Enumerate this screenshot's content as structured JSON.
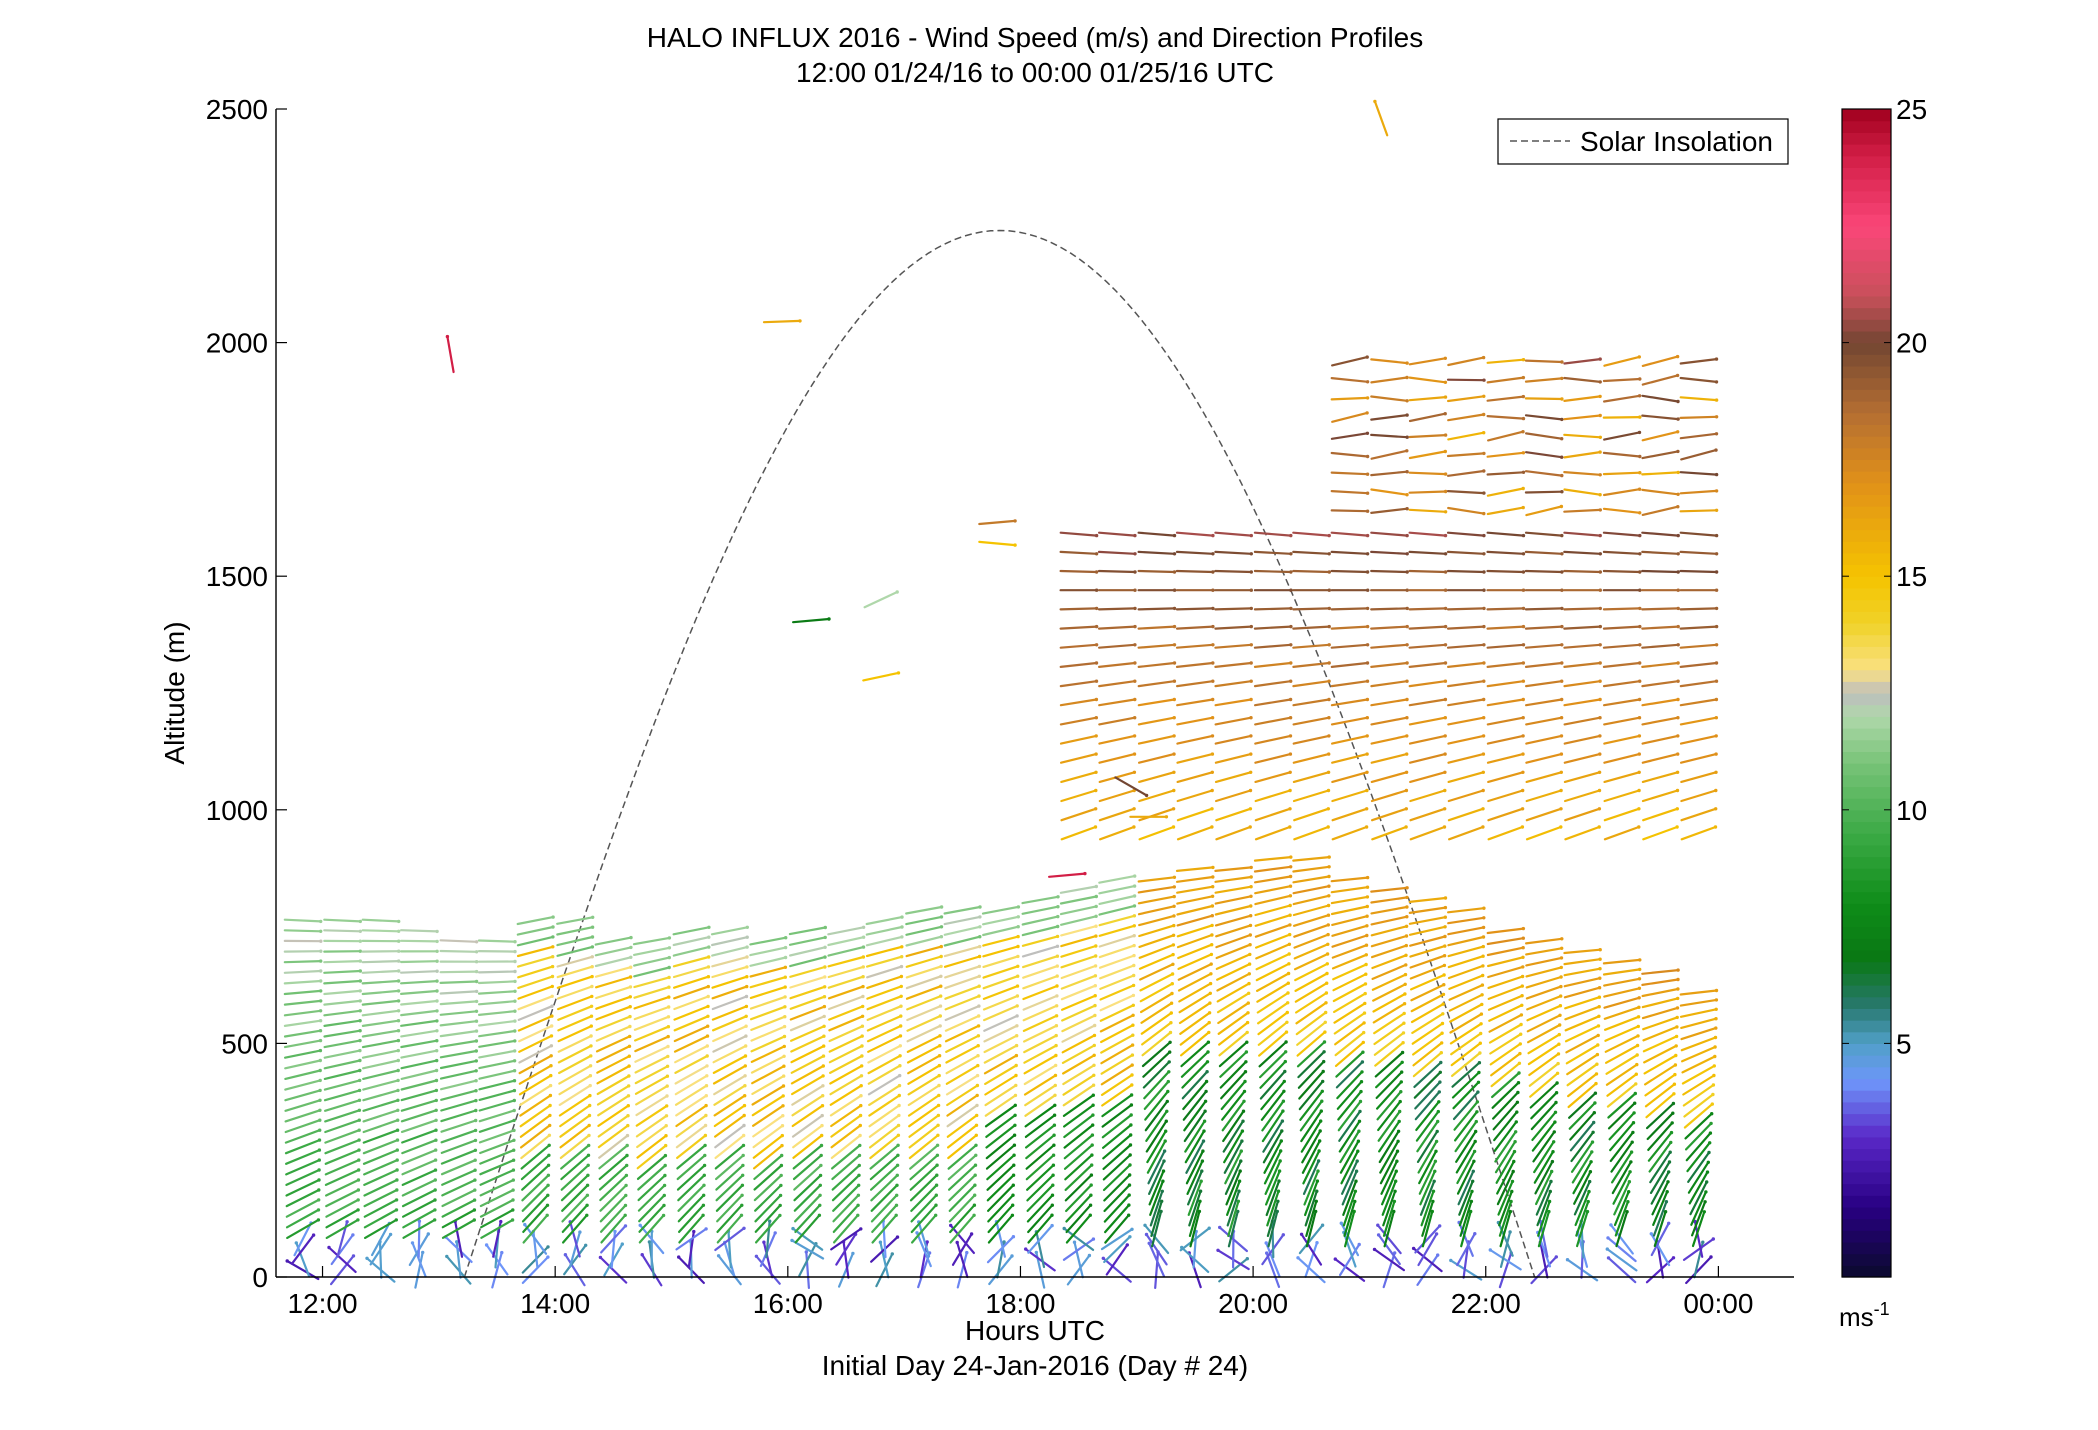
{
  "chart_data": {
    "type": "quiver",
    "title": "HALO INFLUX 2016 - Wind Speed (m/s) and Direction Profiles",
    "subtitle": "12:00 01/24/16 to 00:00 01/25/16  UTC",
    "xlabel": "Hours UTC",
    "xlabel2": "Initial Day 24-Jan-2016 (Day # 24)",
    "ylabel": "Altitude (m)",
    "xlim": [
      11.6,
      24.65
    ],
    "ylim": [
      0,
      2500
    ],
    "xticks": [
      {
        "value": 12,
        "label": "12:00"
      },
      {
        "value": 14,
        "label": "14:00"
      },
      {
        "value": 16,
        "label": "16:00"
      },
      {
        "value": 18,
        "label": "18:00"
      },
      {
        "value": 20,
        "label": "20:00"
      },
      {
        "value": 22,
        "label": "22:00"
      },
      {
        "value": 24,
        "label": "00:00"
      }
    ],
    "yticks": [
      {
        "value": 0,
        "label": "0"
      },
      {
        "value": 500,
        "label": "500"
      },
      {
        "value": 1000,
        "label": "1000"
      },
      {
        "value": 1500,
        "label": "1500"
      },
      {
        "value": 2000,
        "label": "2000"
      },
      {
        "value": 2500,
        "label": "2500"
      }
    ],
    "colorbar": {
      "range": [
        0,
        25
      ],
      "ticks": [
        {
          "value": 5,
          "label": "5"
        },
        {
          "value": 10,
          "label": "10"
        },
        {
          "value": 15,
          "label": "15"
        },
        {
          "value": 20,
          "label": "20"
        },
        {
          "value": 25,
          "label": "25"
        }
      ],
      "unit_label": "ms",
      "unit_exponent": "-1"
    },
    "legend": {
      "position": "top-right",
      "entries": [
        {
          "name": "Solar Insolation",
          "style": "dashed",
          "color": "#555555"
        }
      ]
    },
    "solar_insolation": {
      "start_hour": 13.22,
      "peak_hour": 17.82,
      "end_hour": 22.42,
      "peak_altitude": 2240
    },
    "profile_times": [
      11.83,
      12.17,
      12.5,
      12.83,
      13.17,
      13.5,
      13.83,
      14.17,
      14.5,
      14.83,
      15.17,
      15.5,
      15.83,
      16.17,
      16.5,
      16.83,
      17.17,
      17.5,
      17.83,
      18.17,
      18.5,
      18.83,
      19.17,
      19.5,
      19.83,
      20.17,
      20.5,
      20.83,
      21.17,
      21.5,
      21.83,
      22.17,
      22.5,
      22.83,
      23.17,
      23.5,
      23.83
    ],
    "boundary_layer_top": [
      770,
      770,
      770,
      760,
      730,
      740,
      780,
      770,
      740,
      720,
      760,
      760,
      730,
      750,
      760,
      780,
      790,
      790,
      800,
      810,
      830,
      860,
      870,
      880,
      880,
      900,
      900,
      860,
      840,
      820,
      800,
      760,
      740,
      700,
      680,
      660,
      620
    ],
    "upper_layer": {
      "start_hour": 18.33,
      "base_altitude": 950,
      "top_altitude": 1600
    },
    "extra_upper_rows": {
      "start_hour": 20.83,
      "altitudes": [
        1640,
        1680,
        1720,
        1760,
        1800,
        1840,
        1880,
        1920,
        1960
      ]
    },
    "isolated_vectors": [
      {
        "hour": 13.1,
        "altitude": 1975,
        "speed": 24,
        "direction": 170
      },
      {
        "hour": 15.95,
        "altitude": 2045,
        "speed": 16,
        "direction": 268
      },
      {
        "hour": 16.2,
        "altitude": 1405,
        "speed": 7,
        "direction": 265
      },
      {
        "hour": 16.8,
        "altitude": 1450,
        "speed": 12,
        "direction": 245
      },
      {
        "hour": 16.8,
        "altitude": 1285,
        "speed": 15,
        "direction": 258
      },
      {
        "hour": 17.8,
        "altitude": 1615,
        "speed": 18,
        "direction": 265
      },
      {
        "hour": 17.8,
        "altitude": 1570,
        "speed": 15,
        "direction": 275
      },
      {
        "hour": 18.4,
        "altitude": 860,
        "speed": 24,
        "direction": 265
      },
      {
        "hour": 19.1,
        "altitude": 985,
        "speed": 16,
        "direction": 270
      },
      {
        "hour": 18.95,
        "altitude": 1050,
        "speed": 20,
        "direction": 300
      },
      {
        "hour": 21.1,
        "altitude": 2480,
        "speed": 16,
        "direction": 160
      }
    ]
  }
}
